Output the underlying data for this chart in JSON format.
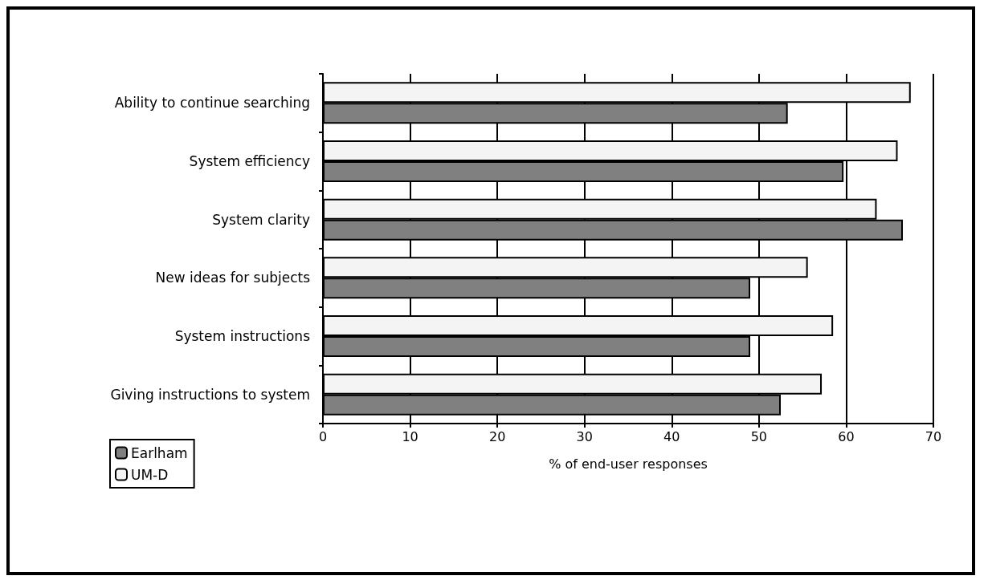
{
  "chart_data": {
    "type": "bar",
    "orientation": "horizontal",
    "xlabel": "% of end-user responses",
    "categories": [
      "Ability to continue searching",
      "System efficiency",
      "System clarity",
      "New ideas for subjects",
      "System instructions",
      "Giving instructions to system"
    ],
    "series": [
      {
        "name": "Earlham",
        "color": "#808080",
        "values": [
          53.3,
          59.7,
          66.5,
          49,
          49,
          52.5
        ]
      },
      {
        "name": "UM-D",
        "color": "#f4f4f4",
        "values": [
          67.4,
          65.9,
          63.5,
          55.6,
          58.5,
          57.2
        ]
      }
    ],
    "xlim": [
      0,
      70
    ],
    "xticks": [
      0,
      10,
      20,
      30,
      40,
      50,
      60,
      70
    ],
    "grid": "x",
    "legend": "bottom left"
  }
}
